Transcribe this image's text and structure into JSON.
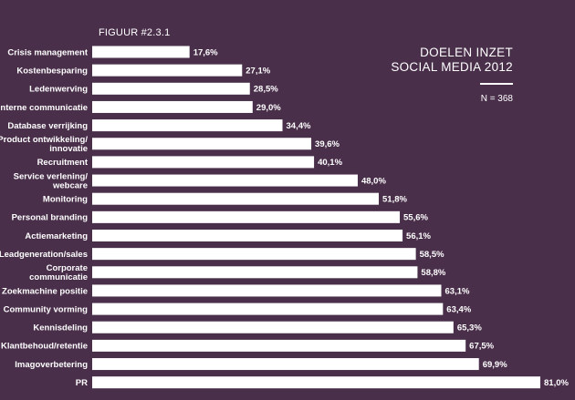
{
  "figure_label": "FIGUUR #2.3.1",
  "title_lines": [
    "DOELEN INZET",
    "SOCIAL MEDIA 2012"
  ],
  "sample_size": "N = 368",
  "colors": {
    "background": "#4a2f4b",
    "bar": "#ffffff",
    "text": "#ffffff"
  },
  "chart_data": {
    "type": "bar",
    "orientation": "horizontal",
    "xlim": [
      0,
      81.0
    ],
    "categories": [
      [
        "Crisis management"
      ],
      [
        "Kostenbesparing"
      ],
      [
        "Ledenwerving"
      ],
      [
        "Interne communicatie"
      ],
      [
        "Database verrijking"
      ],
      [
        "Product ontwikkeling/",
        "innovatie"
      ],
      [
        "Recruitment"
      ],
      [
        "Service verlening/",
        "webcare"
      ],
      [
        "Monitoring"
      ],
      [
        "Personal branding"
      ],
      [
        "Actiemarketing"
      ],
      [
        "Leadgeneration/sales"
      ],
      [
        "Corporate",
        "communicatie"
      ],
      [
        "Zoekmachine positie"
      ],
      [
        "Community vorming"
      ],
      [
        "Kennisdeling"
      ],
      [
        "Klantbehoud/retentie"
      ],
      [
        "Imagoverbetering"
      ],
      [
        "PR"
      ]
    ],
    "values": [
      17.6,
      27.1,
      28.5,
      29.0,
      34.4,
      39.6,
      40.1,
      48.0,
      51.8,
      55.6,
      56.1,
      58.5,
      58.8,
      63.1,
      63.4,
      65.3,
      67.5,
      69.9,
      81.0
    ],
    "value_labels": [
      "17,6%",
      "27,1%",
      "28,5%",
      "29,0%",
      "34,4%",
      "39,6%",
      "40,1%",
      "48,0%",
      "51,8%",
      "55,6%",
      "56,1%",
      "58,5%",
      "58,8%",
      "63,1%",
      "63,4%",
      "65,3%",
      "67,5%",
      "69,9%",
      "81,0%"
    ]
  }
}
